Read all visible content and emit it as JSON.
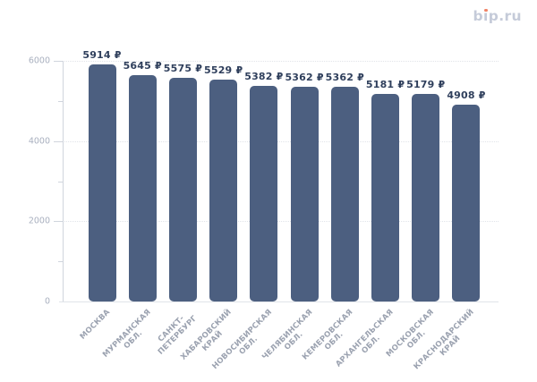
{
  "logo": {
    "text": "bip.ru",
    "before_i": "b",
    "i_base": "ı",
    "after_i": "p.ru",
    "text_color": "#C5CBD9",
    "dot_color": "#F08266"
  },
  "chart_data": {
    "type": "bar",
    "title": "",
    "xlabel": "",
    "ylabel": "",
    "categories": [
      "МОСКВА",
      "МУРМАНСКАЯ ОБЛ.",
      "САНКТ-ПЕТЕРБУРГ",
      "ХАБАРОВСКИЙ КРАЙ",
      "НОВОСИБИРСКАЯ ОБЛ.",
      "ЧЕЛЯБИНСКАЯ ОБЛ.",
      "КЕМЕРОВСКАЯ ОБЛ.",
      "АРХАНГЕЛЬСКАЯ ОБЛ.",
      "МОСКОВСКАЯ ОБЛ.",
      "КРАСНОДАРСКИЙ КРАЙ"
    ],
    "category_lines": [
      [
        "МОСКВА"
      ],
      [
        "МУРМАНСКАЯ",
        "ОБЛ."
      ],
      [
        "САНКТ-",
        "ПЕТЕРБУРГ"
      ],
      [
        "ХАБАРОВСКИЙ",
        "КРАЙ"
      ],
      [
        "НОВОСИБИРСКАЯ",
        "ОБЛ."
      ],
      [
        "ЧЕЛЯБИНСКАЯ",
        "ОБЛ."
      ],
      [
        "КЕМЕРОВСКАЯ",
        "ОБЛ."
      ],
      [
        "АРХАНГЕЛЬСКАЯ",
        "ОБЛ."
      ],
      [
        "МОСКОВСКАЯ",
        "ОБЛ."
      ],
      [
        "КРАСНОДАРСКИЙ",
        "КРАЙ"
      ]
    ],
    "values": [
      5914,
      5645,
      5575,
      5529,
      5382,
      5362,
      5362,
      5181,
      5179,
      4908
    ],
    "value_labels": [
      "5914 ₽",
      "5645 ₽",
      "5575 ₽",
      "5529 ₽",
      "5382 ₽",
      "5362 ₽",
      "5362 ₽",
      "5181 ₽",
      "5179 ₽",
      "4908 ₽"
    ],
    "value_suffix": " ₽",
    "y_ticks": [
      0,
      2000,
      4000,
      6000
    ],
    "y_minor_ticks": [
      1000,
      3000,
      5000
    ],
    "ylim": [
      0,
      6000
    ],
    "grid": "horizontal-dotted",
    "legend": "none",
    "bar_color": "#4C5F80",
    "value_label_color": "#2F3F5C",
    "y_label_color": "#A9B0BF",
    "category_label_color": "#9BA2B0"
  }
}
